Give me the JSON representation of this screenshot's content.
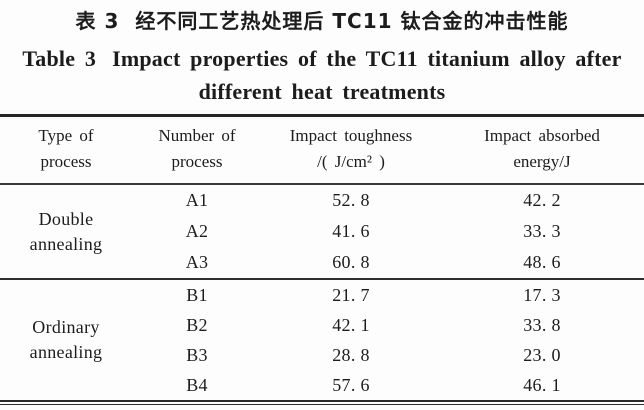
{
  "title": {
    "zh_prefix": "表 3",
    "zh_text": "经不同工艺热处理后 TC11 钛合金的冲击性能",
    "en_prefix": "Table 3",
    "en_line1": "Impact properties of the TC11 titanium alloy after",
    "en_line2": "different heat treatments"
  },
  "table": {
    "columns": [
      {
        "line1": "Type of",
        "line2": "process"
      },
      {
        "line1": "Number of",
        "line2": "process"
      },
      {
        "line1": "Impact toughness",
        "line2": "/( J/cm² )"
      },
      {
        "line1": "Impact absorbed",
        "line2": "energy/J"
      }
    ],
    "groups": [
      {
        "type_line1": "Double",
        "type_line2": "annealing",
        "rows": [
          {
            "number": "A1",
            "toughness": "52. 8",
            "energy": "42. 2"
          },
          {
            "number": "A2",
            "toughness": "41. 6",
            "energy": "33. 3"
          },
          {
            "number": "A3",
            "toughness": "60. 8",
            "energy": "48. 6"
          }
        ]
      },
      {
        "type_line1": "Ordinary",
        "type_line2": "annealing",
        "rows": [
          {
            "number": "B1",
            "toughness": "21. 7",
            "energy": "17. 3"
          },
          {
            "number": "B2",
            "toughness": "42. 1",
            "energy": "33. 8"
          },
          {
            "number": "B3",
            "toughness": "28. 8",
            "energy": "23. 0"
          },
          {
            "number": "B4",
            "toughness": "57. 6",
            "energy": "46. 1"
          }
        ]
      }
    ]
  }
}
